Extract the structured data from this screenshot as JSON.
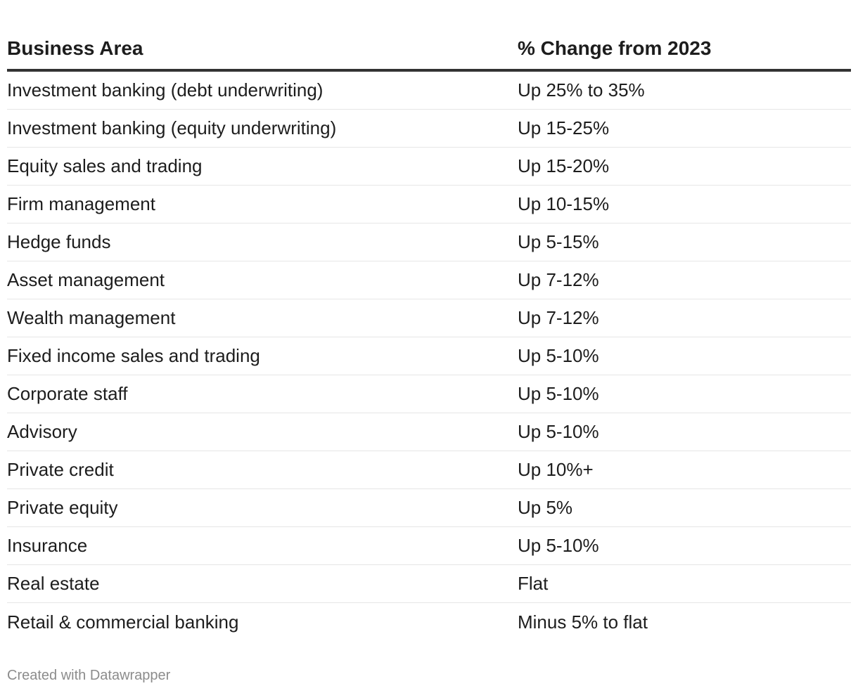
{
  "chart_data": {
    "type": "table",
    "columns": [
      "Business Area",
      "% Change from 2023"
    ],
    "rows": [
      [
        "Investment banking (debt underwriting)",
        "Up 25% to 35%"
      ],
      [
        "Investment banking (equity underwriting)",
        "Up 15-25%"
      ],
      [
        "Equity sales and trading",
        "Up 15-20%"
      ],
      [
        "Firm management",
        "Up 10-15%"
      ],
      [
        "Hedge funds",
        "Up 5-15%"
      ],
      [
        "Asset management",
        "Up 7-12%"
      ],
      [
        "Wealth management",
        "Up 7-12%"
      ],
      [
        "Fixed income sales and trading",
        "Up 5-10%"
      ],
      [
        "Corporate staff",
        "Up 5-10%"
      ],
      [
        "Advisory",
        "Up 5-10%"
      ],
      [
        "Private credit",
        "Up 10%+"
      ],
      [
        "Private equity",
        "Up 5%"
      ],
      [
        "Insurance",
        "Up 5-10%"
      ],
      [
        "Real estate",
        "Flat"
      ],
      [
        "Retail & commercial banking",
        "Minus 5% to flat"
      ]
    ]
  },
  "footer": {
    "credit": "Created with Datawrapper"
  }
}
